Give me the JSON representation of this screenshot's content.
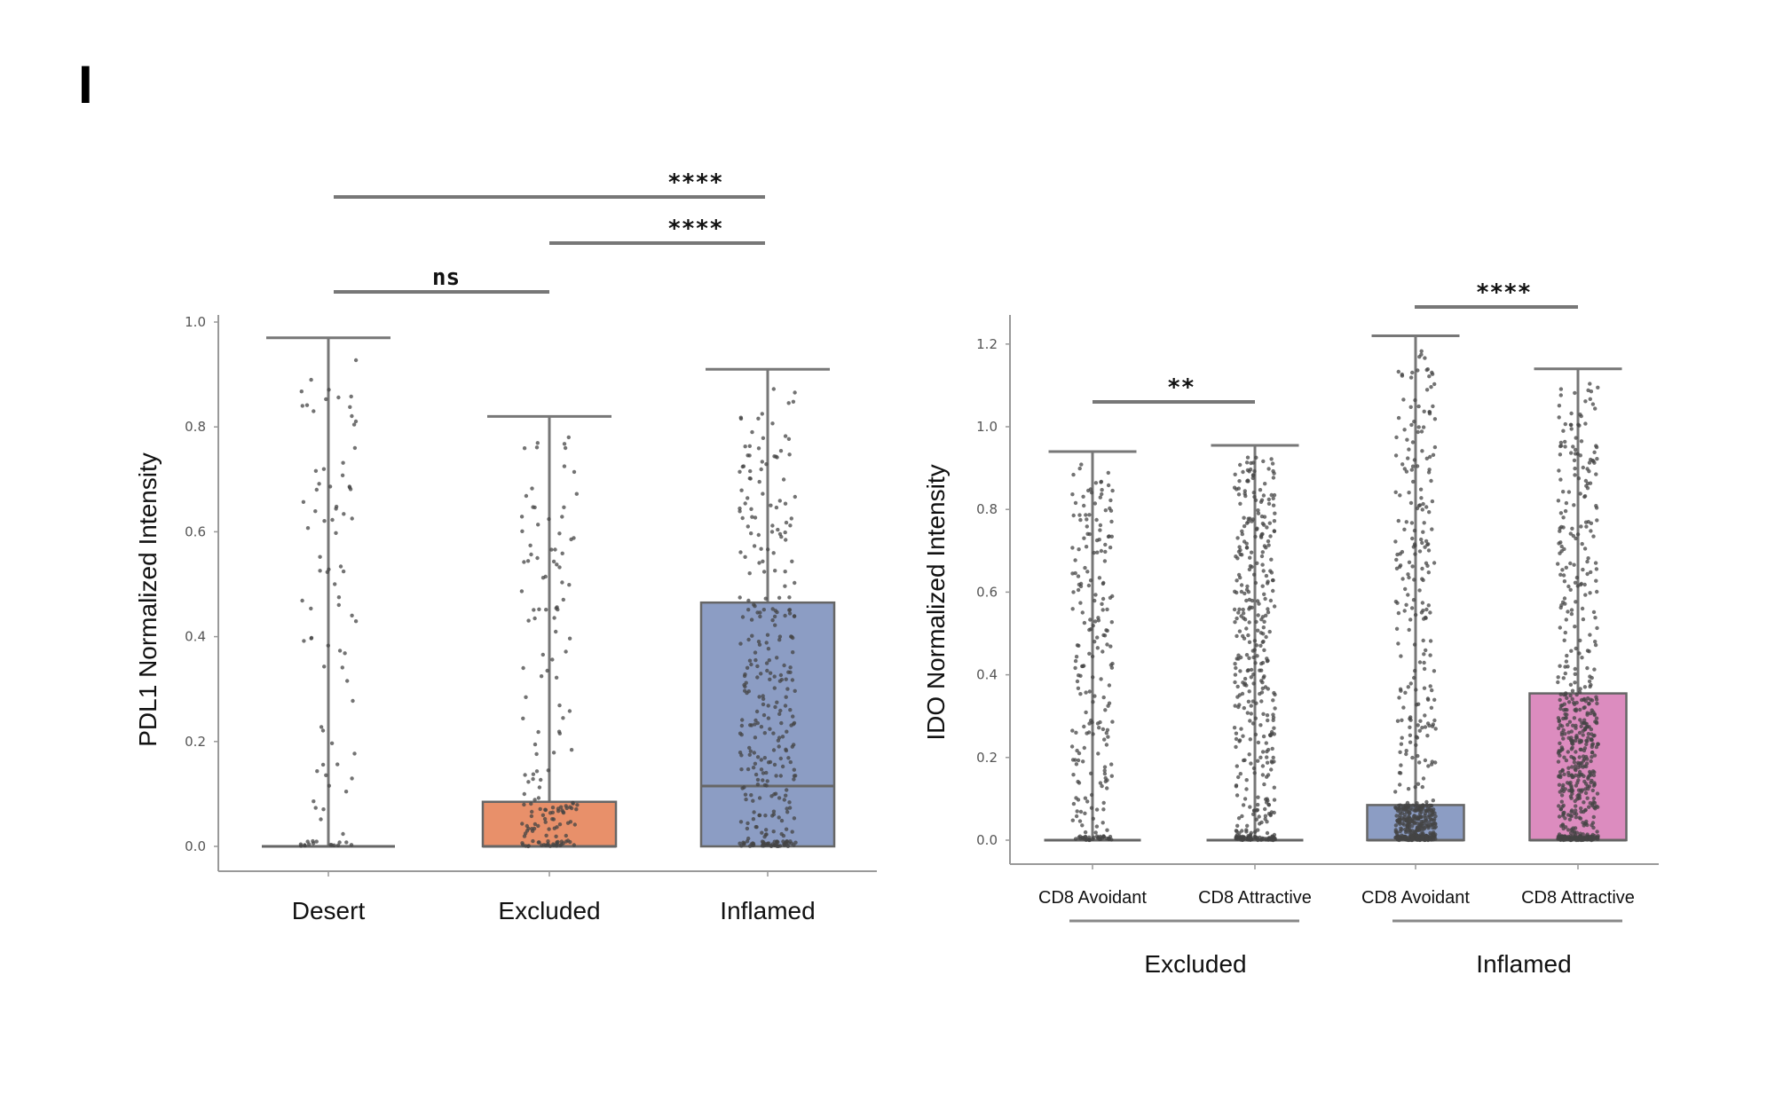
{
  "panel_label": "I",
  "chart_data": [
    {
      "type": "box",
      "ylabel": "PDL1 Normalized Intensity",
      "xlabel": "",
      "ylim": [
        -0.05,
        1.0
      ],
      "yticks": [
        "0.0",
        "0.2",
        "0.4",
        "0.6",
        "0.8",
        "1.0"
      ],
      "categories": [
        "Desert",
        "Excluded",
        "Inflamed"
      ],
      "colors": [
        "#ffffff",
        "#E8906A",
        "#8C9DC4"
      ],
      "boxes": [
        {
          "q1": 0.0,
          "median": 0.0,
          "q3": 0.0,
          "whisker_low": 0.0,
          "whisker_high": 0.97,
          "n": 90
        },
        {
          "q1": 0.0,
          "median": 0.0,
          "q3": 0.085,
          "whisker_low": 0.0,
          "whisker_high": 0.82,
          "n": 160
        },
        {
          "q1": 0.0,
          "median": 0.115,
          "q3": 0.465,
          "whisker_low": 0.0,
          "whisker_high": 0.91,
          "n": 330
        }
      ],
      "significance": [
        {
          "from": "Desert",
          "to": "Excluded",
          "label": "ns"
        },
        {
          "from": "Excluded",
          "to": "Inflamed",
          "label": "****"
        },
        {
          "from": "Desert",
          "to": "Inflamed",
          "label": "****"
        }
      ]
    },
    {
      "type": "box",
      "ylabel": "IDO Normalized Intensity",
      "xlabel": "",
      "ylim": [
        -0.06,
        1.28
      ],
      "yticks": [
        "0.0",
        "0.2",
        "0.4",
        "0.6",
        "0.8",
        "1.0",
        "1.2"
      ],
      "categories": [
        "CD8 Avoidant",
        "CD8 Attractive",
        "CD8 Avoidant",
        "CD8 Attractive"
      ],
      "groups": [
        {
          "label": "Excluded",
          "members": [
            0,
            1
          ]
        },
        {
          "label": "Inflamed",
          "members": [
            2,
            3
          ]
        }
      ],
      "colors": [
        "#ffffff",
        "#ffffff",
        "#8C9DC4",
        "#DC8CBF"
      ],
      "boxes": [
        {
          "q1": 0.0,
          "median": 0.0,
          "q3": 0.0,
          "whisker_low": 0.0,
          "whisker_high": 0.94,
          "n": 230
        },
        {
          "q1": 0.0,
          "median": 0.0,
          "q3": 0.0,
          "whisker_low": 0.0,
          "whisker_high": 0.955,
          "n": 420
        },
        {
          "q1": 0.0,
          "median": 0.0,
          "q3": 0.085,
          "whisker_low": 0.0,
          "whisker_high": 1.22,
          "n": 560
        },
        {
          "q1": 0.0,
          "median": 0.0,
          "q3": 0.355,
          "whisker_low": 0.0,
          "whisker_high": 1.14,
          "n": 620
        }
      ],
      "significance": [
        {
          "from": 0,
          "to": 1,
          "label": "**"
        },
        {
          "from": 2,
          "to": 3,
          "label": "****"
        }
      ]
    }
  ]
}
